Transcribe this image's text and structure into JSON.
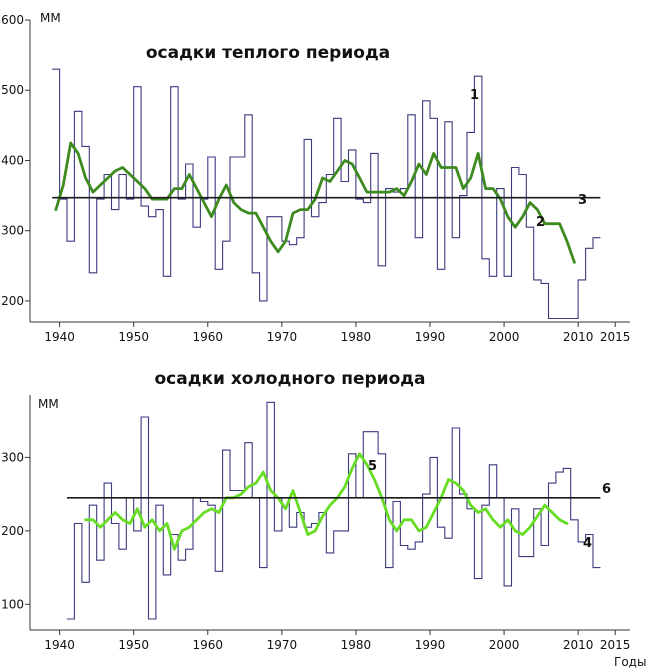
{
  "chart_data": [
    {
      "type": "line",
      "title": "осадки теплого периода",
      "ylabel": "ММ",
      "xlabel": "",
      "xlim": [
        1936,
        2017
      ],
      "ylim": [
        170,
        600
      ],
      "xticks": [
        1940,
        1950,
        1960,
        1970,
        1980,
        1990,
        2000,
        2010,
        2015
      ],
      "yticks": [
        200,
        300,
        400,
        500,
        600
      ],
      "grid": false,
      "legend": "none",
      "series": [
        {
          "style": "step",
          "color": "#3a3a80",
          "label": "1",
          "x": [
            1939,
            1940,
            1941,
            1942,
            1943,
            1944,
            1945,
            1946,
            1947,
            1948,
            1949,
            1950,
            1951,
            1952,
            1953,
            1954,
            1955,
            1956,
            1957,
            1958,
            1959,
            1960,
            1961,
            1962,
            1963,
            1964,
            1965,
            1966,
            1967,
            1968,
            1969,
            1970,
            1971,
            1972,
            1973,
            1974,
            1975,
            1976,
            1977,
            1978,
            1979,
            1980,
            1981,
            1982,
            1983,
            1984,
            1985,
            1986,
            1987,
            1988,
            1989,
            1990,
            1991,
            1992,
            1993,
            1994,
            1995,
            1996,
            1997,
            1998,
            1999,
            2000,
            2001,
            2002,
            2003,
            2004,
            2005,
            2006,
            2007,
            2008,
            2009,
            2010,
            2011,
            2012
          ],
          "y": [
            530,
            345,
            285,
            470,
            420,
            240,
            345,
            380,
            330,
            380,
            345,
            505,
            335,
            320,
            330,
            235,
            505,
            345,
            395,
            305,
            345,
            405,
            245,
            285,
            405,
            405,
            465,
            240,
            200,
            320,
            320,
            285,
            280,
            290,
            430,
            320,
            340,
            380,
            460,
            370,
            415,
            345,
            340,
            410,
            250,
            360,
            355,
            360,
            465,
            290,
            485,
            460,
            245,
            455,
            290,
            350,
            440,
            520,
            260,
            235,
            360,
            235,
            390,
            380,
            305,
            230,
            225,
            175,
            175,
            175,
            175,
            230,
            275,
            290
          ]
        },
        {
          "style": "smooth",
          "color": "#3d8a1e",
          "label": "2",
          "x": [
            1939,
            1940,
            1941,
            1942,
            1943,
            1944,
            1945,
            1946,
            1947,
            1948,
            1949,
            1950,
            1951,
            1952,
            1953,
            1954,
            1955,
            1956,
            1957,
            1958,
            1959,
            1960,
            1961,
            1962,
            1963,
            1964,
            1965,
            1966,
            1967,
            1968,
            1969,
            1970,
            1971,
            1972,
            1973,
            1974,
            1975,
            1976,
            1977,
            1978,
            1979,
            1980,
            1981,
            1982,
            1983,
            1984,
            1985,
            1986,
            1987,
            1988,
            1989,
            1990,
            1991,
            1992,
            1993,
            1994,
            1995,
            1996,
            1997,
            1998,
            1999,
            2000,
            2001,
            2002,
            2003,
            2004,
            2005,
            2006,
            2007,
            2008,
            2009
          ],
          "y": [
            330,
            365,
            425,
            410,
            375,
            355,
            365,
            375,
            385,
            390,
            380,
            370,
            360,
            345,
            345,
            345,
            360,
            360,
            380,
            360,
            340,
            320,
            345,
            365,
            340,
            330,
            325,
            325,
            305,
            285,
            270,
            285,
            325,
            330,
            330,
            345,
            375,
            370,
            385,
            400,
            395,
            375,
            355,
            355,
            355,
            355,
            360,
            350,
            370,
            395,
            380,
            410,
            390,
            390,
            390,
            360,
            375,
            410,
            360,
            360,
            345,
            320,
            305,
            320,
            340,
            330,
            310,
            310,
            310,
            285,
            255
          ]
        },
        {
          "style": "flat",
          "color": "#1a1a1a",
          "label": "3",
          "x": [
            1939,
            2012
          ],
          "y": [
            347,
            347
          ]
        }
      ]
    },
    {
      "type": "line",
      "title": "осадки холодного периода",
      "ylabel": "ММ",
      "xlabel": "Годы",
      "xlim": [
        1936,
        2017
      ],
      "ylim": [
        65,
        385
      ],
      "xticks": [
        1940,
        1950,
        1960,
        1970,
        1980,
        1990,
        2000,
        2010,
        2015
      ],
      "yticks": [
        100,
        200,
        300
      ],
      "grid": false,
      "legend": "none",
      "series": [
        {
          "style": "step",
          "color": "#3a3a80",
          "label": "4",
          "x": [
            1941,
            1942,
            1943,
            1944,
            1945,
            1946,
            1947,
            1948,
            1949,
            1950,
            1951,
            1952,
            1953,
            1954,
            1955,
            1956,
            1957,
            1958,
            1959,
            1960,
            1961,
            1962,
            1963,
            1964,
            1965,
            1966,
            1967,
            1968,
            1969,
            1970,
            1971,
            1972,
            1973,
            1974,
            1975,
            1976,
            1977,
            1978,
            1979,
            1980,
            1981,
            1982,
            1983,
            1984,
            1985,
            1986,
            1987,
            1988,
            1989,
            1990,
            1991,
            1992,
            1993,
            1994,
            1995,
            1996,
            1997,
            1998,
            1999,
            2000,
            2001,
            2002,
            2003,
            2004,
            2005,
            2006,
            2007,
            2008,
            2009,
            2010,
            2011,
            2012
          ],
          "y": [
            80,
            210,
            130,
            235,
            160,
            265,
            210,
            175,
            245,
            200,
            355,
            80,
            235,
            140,
            195,
            160,
            175,
            245,
            240,
            235,
            145,
            310,
            255,
            255,
            320,
            245,
            150,
            375,
            200,
            245,
            205,
            225,
            205,
            210,
            225,
            170,
            200,
            200,
            305,
            245,
            335,
            335,
            305,
            150,
            240,
            180,
            175,
            185,
            250,
            300,
            205,
            190,
            340,
            250,
            230,
            135,
            235,
            290,
            245,
            125,
            230,
            165,
            165,
            230,
            180,
            265,
            280,
            285,
            215,
            185,
            195,
            150
          ]
        },
        {
          "style": "smooth",
          "color": "#66dd22",
          "label": "5",
          "x": [
            1943,
            1944,
            1945,
            1946,
            1947,
            1948,
            1949,
            1950,
            1951,
            1952,
            1953,
            1954,
            1955,
            1956,
            1957,
            1958,
            1959,
            1960,
            1961,
            1962,
            1963,
            1964,
            1965,
            1966,
            1967,
            1968,
            1969,
            1970,
            1971,
            1972,
            1973,
            1974,
            1975,
            1976,
            1977,
            1978,
            1979,
            1980,
            1981,
            1982,
            1983,
            1984,
            1985,
            1986,
            1987,
            1988,
            1989,
            1990,
            1991,
            1992,
            1993,
            1994,
            1995,
            1996,
            1997,
            1998,
            1999,
            2000,
            2001,
            2002,
            2003,
            2004,
            2005,
            2006,
            2007,
            2008
          ],
          "y": [
            215,
            215,
            205,
            215,
            225,
            215,
            210,
            230,
            205,
            215,
            200,
            210,
            175,
            200,
            205,
            215,
            225,
            230,
            225,
            245,
            245,
            250,
            260,
            265,
            280,
            255,
            245,
            230,
            255,
            225,
            195,
            200,
            220,
            235,
            245,
            260,
            285,
            305,
            290,
            270,
            245,
            215,
            200,
            215,
            215,
            200,
            205,
            225,
            245,
            270,
            265,
            255,
            235,
            225,
            230,
            215,
            205,
            215,
            200,
            195,
            205,
            220,
            235,
            225,
            215,
            210
          ]
        },
        {
          "style": "flat",
          "color": "#1a1a1a",
          "label": "6",
          "x": [
            1941,
            2012
          ],
          "y": [
            245,
            245
          ]
        }
      ]
    }
  ]
}
